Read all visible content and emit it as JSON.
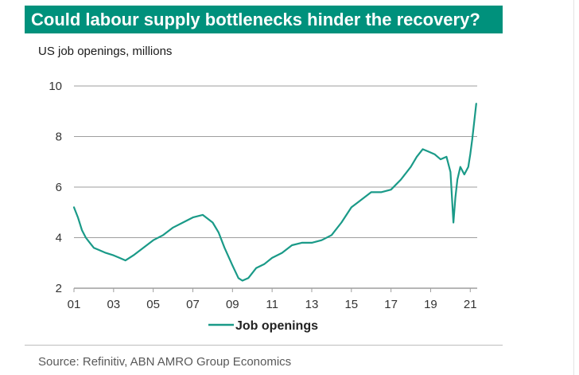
{
  "header": {
    "title": "Could labour supply bottlenecks hinder the recovery?",
    "subtitle": "US job openings, millions"
  },
  "footer": {
    "source": "Source:  Refinitiv, ABN AMRO Group Economics"
  },
  "colors": {
    "accent": "#00917c",
    "series": "#1a9a88",
    "grid": "#9e9e9e"
  },
  "chart_data": {
    "type": "line",
    "title": "",
    "xlabel": "",
    "ylabel": "",
    "ylim": [
      2,
      10
    ],
    "yticks": [
      2,
      4,
      6,
      8,
      10
    ],
    "xlim": [
      2001.0,
      2021.35
    ],
    "xticks": [
      2001,
      2003,
      2005,
      2007,
      2009,
      2011,
      2013,
      2015,
      2017,
      2019,
      2021
    ],
    "xtick_labels": [
      "01",
      "03",
      "05",
      "07",
      "09",
      "11",
      "13",
      "15",
      "17",
      "19",
      "21"
    ],
    "grid": true,
    "legend": "bottom-center",
    "series": [
      {
        "name": "Job openings",
        "x": [
          2001.0,
          2001.2,
          2001.4,
          2001.6,
          2001.8,
          2002.0,
          2002.3,
          2002.6,
          2003.0,
          2003.3,
          2003.6,
          2004.0,
          2004.5,
          2005.0,
          2005.5,
          2006.0,
          2006.5,
          2007.0,
          2007.5,
          2008.0,
          2008.3,
          2008.6,
          2009.0,
          2009.3,
          2009.5,
          2009.8,
          2010.2,
          2010.6,
          2011.0,
          2011.5,
          2012.0,
          2012.5,
          2013.0,
          2013.5,
          2014.0,
          2014.5,
          2015.0,
          2015.5,
          2016.0,
          2016.5,
          2017.0,
          2017.5,
          2018.0,
          2018.3,
          2018.6,
          2018.9,
          2019.2,
          2019.5,
          2019.8,
          2020.0,
          2020.15,
          2020.25,
          2020.35,
          2020.5,
          2020.7,
          2020.9,
          2021.0,
          2021.1,
          2021.2,
          2021.3
        ],
        "values": [
          5.2,
          4.8,
          4.3,
          4.0,
          3.8,
          3.6,
          3.5,
          3.4,
          3.3,
          3.2,
          3.1,
          3.3,
          3.6,
          3.9,
          4.1,
          4.4,
          4.6,
          4.8,
          4.9,
          4.6,
          4.2,
          3.6,
          2.9,
          2.4,
          2.3,
          2.4,
          2.8,
          2.95,
          3.2,
          3.4,
          3.7,
          3.8,
          3.8,
          3.9,
          4.1,
          4.6,
          5.2,
          5.5,
          5.8,
          5.8,
          5.9,
          6.3,
          6.8,
          7.2,
          7.5,
          7.4,
          7.3,
          7.1,
          7.2,
          6.6,
          4.6,
          5.6,
          6.3,
          6.8,
          6.5,
          6.8,
          7.3,
          7.9,
          8.6,
          9.3
        ]
      }
    ]
  }
}
